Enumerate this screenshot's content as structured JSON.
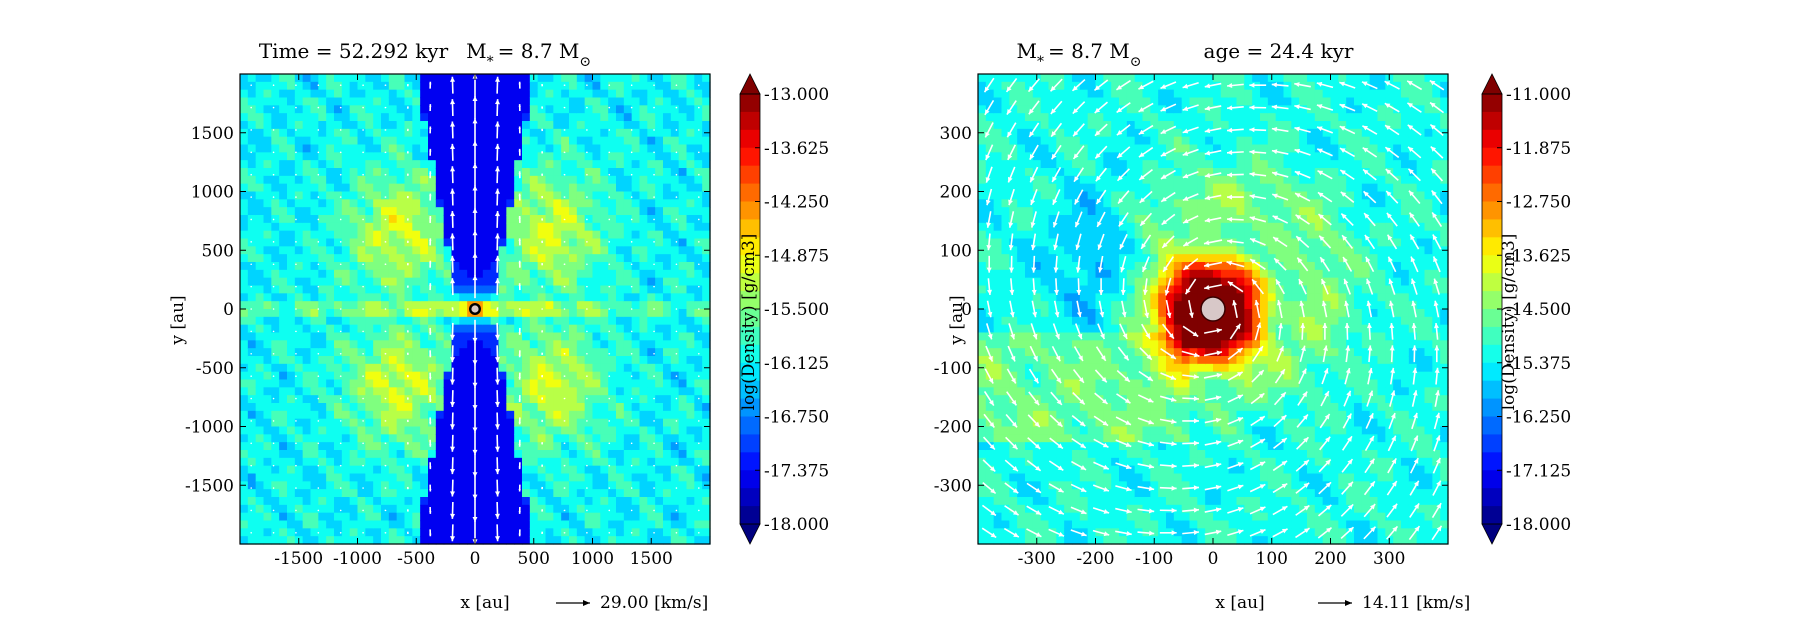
{
  "chart_data": [
    {
      "type": "heatmap",
      "title": "Time = 52.292 kyr    M$_*$ = 8.7 M$_\\odot$",
      "title_parts": {
        "left": "Time = 52.292 kyr",
        "mass": "M",
        "mass_sub": "*",
        "mass_eq": "= 8.7 M",
        "mass_sun": "⊙"
      },
      "xlabel": "x [au]",
      "ylabel": "y [au]",
      "xlim": [
        -2000,
        2000
      ],
      "ylim": [
        -2000,
        2000
      ],
      "xticks": [
        -1500,
        -1000,
        -500,
        0,
        500,
        1000,
        1500
      ],
      "yticks": [
        -1500,
        -1000,
        -500,
        0,
        500,
        1000,
        1500
      ],
      "velocity_key": {
        "text": "29.00 [km/s]",
        "value": 29.0
      },
      "colorbar": {
        "label": "log(Density) [g/cm3]",
        "min": -18.0,
        "max": -13.0,
        "ticks": [
          "-13.000",
          "-13.625",
          "-14.250",
          "-14.875",
          "-15.500",
          "-16.125",
          "-16.750",
          "-17.375",
          "-18.000"
        ],
        "extend": "both"
      },
      "description_features": "edge-on disk with bipolar outflow cavities",
      "grid": false
    },
    {
      "type": "heatmap",
      "title": "M$_*$ = 8.7 M$_\\odot$    age = 24.4 kyr",
      "title_parts": {
        "mass": "M",
        "mass_sub": "*",
        "mass_eq": "= 8.7 M",
        "mass_sun": "⊙",
        "age": "age = 24.4 kyr"
      },
      "xlabel": "x [au]",
      "ylabel": "y [au]",
      "xlim": [
        -400,
        400
      ],
      "ylim": [
        -400,
        400
      ],
      "xticks": [
        -300,
        -200,
        -100,
        0,
        100,
        200,
        300
      ],
      "yticks": [
        -300,
        -200,
        -100,
        0,
        100,
        200,
        300
      ],
      "velocity_key": {
        "text": "14.11 [km/s]",
        "value": 14.11
      },
      "colorbar": {
        "label": "log(Density) [g/cm3]",
        "min": -18.0,
        "max": -11.0,
        "ticks": [
          "-11.000",
          "-11.875",
          "-12.750",
          "-13.625",
          "-14.500",
          "-15.375",
          "-16.250",
          "-17.125",
          "-18.000"
        ],
        "extend": "both"
      },
      "grid": false
    }
  ],
  "colors": {
    "jet": [
      "#00007f",
      "#0000ff",
      "#007fff",
      "#00ffff",
      "#7fff7f",
      "#ffff00",
      "#ff7f00",
      "#ff0000",
      "#7f0000"
    ],
    "arrow": "#ffffff",
    "star": "#d8c8c8"
  }
}
